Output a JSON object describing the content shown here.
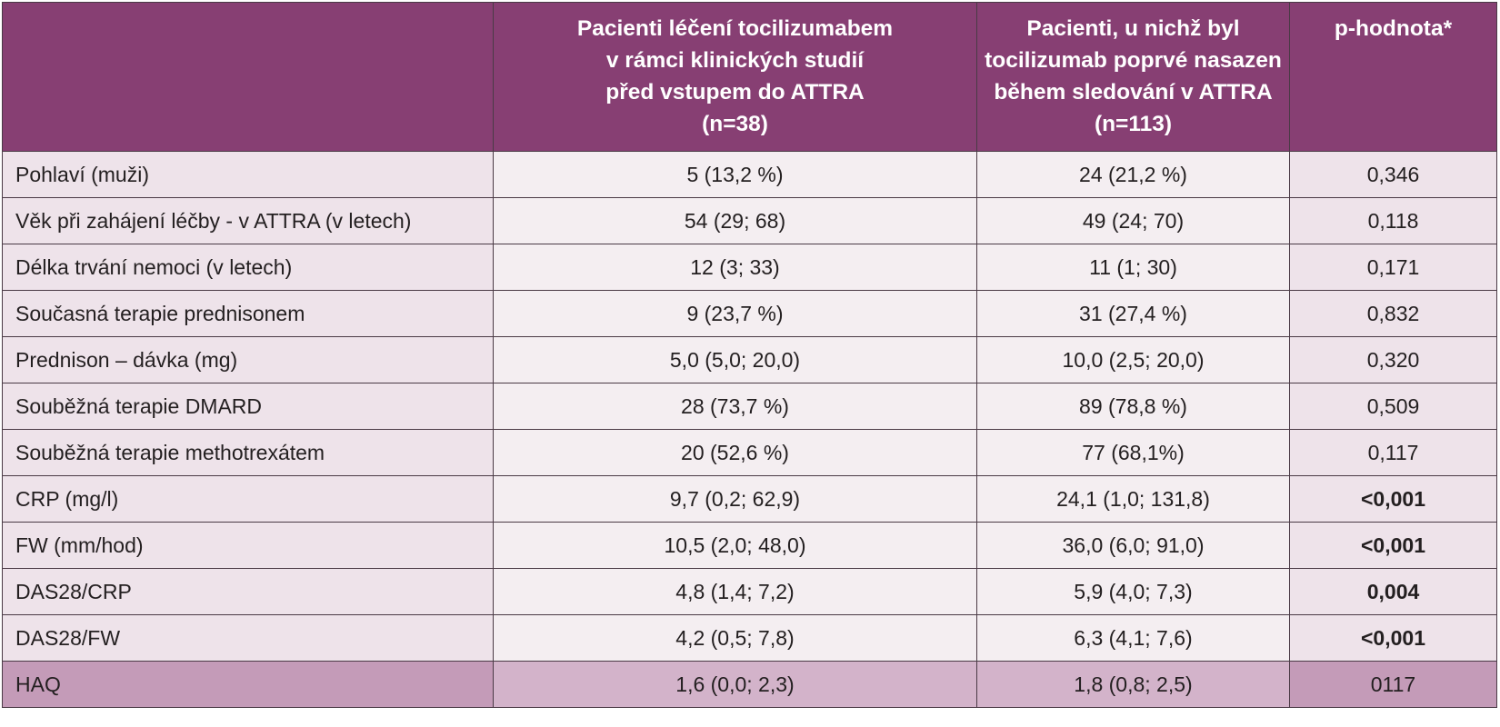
{
  "table": {
    "headers": [
      {
        "lines": []
      },
      {
        "lines": [
          "Pacienti léčení tocilizumabem",
          "v rámci klinických studií",
          "před vstupem do ATTRA",
          "(n=38)"
        ]
      },
      {
        "lines": [
          "Pacienti, u nichž byl",
          "tocilizumab poprvé nasazen",
          "během sledování v ATTRA",
          "(n=113)"
        ]
      },
      {
        "lines": [
          "p-hodnota*"
        ]
      }
    ],
    "rows": [
      {
        "label": "Pohlaví (muži)",
        "group1": "5 (13,2 %)",
        "group2": "24 (21,2 %)",
        "p": "0,346"
      },
      {
        "label": "Věk při zahájení léčby - v ATTRA (v letech)",
        "group1": "54 (29; 68)",
        "group2": "49 (24; 70)",
        "p": "0,118"
      },
      {
        "label": "Délka trvání nemoci (v letech)",
        "group1": "12 (3; 33)",
        "group2": "11 (1; 30)",
        "p": "0,171"
      },
      {
        "label": "Současná terapie prednisonem",
        "group1": "9 (23,7 %)",
        "group2": "31 (27,4 %)",
        "p": "0,832"
      },
      {
        "label": "Prednison – dávka (mg)",
        "group1": "5,0 (5,0; 20,0)",
        "group2": "10,0 (2,5; 20,0)",
        "p": "0,320"
      },
      {
        "label": "Souběžná terapie DMARD",
        "group1": "28 (73,7 %)",
        "group2": "89 (78,8 %)",
        "p": "0,509"
      },
      {
        "label": "Souběžná terapie methotrexátem",
        "group1": "20 (52,6 %)",
        "group2": "77 (68,1%)",
        "p": "0,117"
      },
      {
        "label": "CRP (mg/l)",
        "group1": "9,7 (0,2; 62,9)",
        "group2": "24,1 (1,0; 131,8)",
        "p": "<0,001"
      },
      {
        "label": "FW (mm/hod)",
        "group1": "10,5 (2,0; 48,0)",
        "group2": "36,0 (6,0; 91,0)",
        "p": "<0,001"
      },
      {
        "label": "DAS28/CRP",
        "group1": "4,8 (1,4; 7,2)",
        "group2": "5,9 (4,0; 7,3)",
        "p": "0,004"
      },
      {
        "label": "DAS28/FW",
        "group1": "4,2 (0,5; 7,8)",
        "group2": "6,3 (4,1; 7,6)",
        "p": "<0,001"
      },
      {
        "label": "HAQ",
        "group1": "1,6 (0,0; 2,3)",
        "group2": "1,8 (0,8; 2,5)",
        "p": "0117"
      }
    ],
    "bold_p_rows": [
      7,
      8,
      9,
      10
    ],
    "colors": {
      "header_bg": "#873f73",
      "header_text": "#ffffff",
      "row_bg": "#eee3ea",
      "row_bg_light": "#f4eef1",
      "last_row_bg": "#c49bb8",
      "last_row_bg_light": "#d3b3ca",
      "border": "#4a3a45"
    }
  }
}
